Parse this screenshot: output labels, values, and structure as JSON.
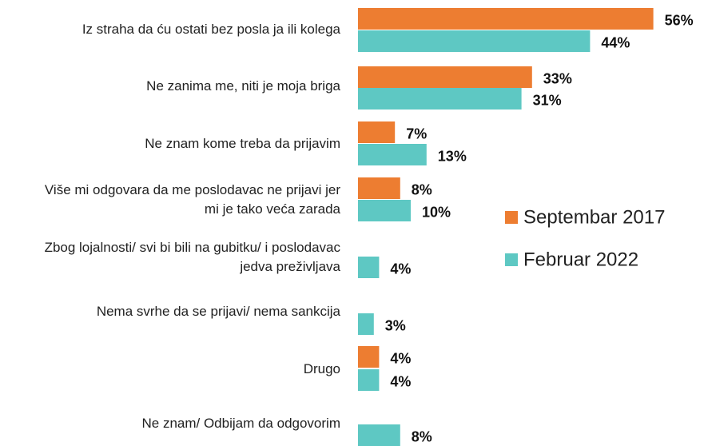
{
  "chart_data": {
    "type": "bar",
    "orientation": "horizontal",
    "categories": [
      "Iz straha da ću ostati bez posla ja ili kolega",
      "Ne zanima me, niti je moja briga",
      "Ne znam kome treba da prijavim",
      "Više mi odgovara da me poslodavac ne prijavi jer mi je tako veća zarada",
      "Zbog lojalnosti/ svi bi bili na gubitku/ i poslodavac jedva preživljava",
      "Nema svrhe da se prijavi/ nema sankcija",
      "Drugo",
      "Ne znam/ Odbijam da odgovorim"
    ],
    "series": [
      {
        "name": "Septembar 2017",
        "color": "#ed7d31",
        "values": [
          56,
          33,
          7,
          8,
          null,
          null,
          4,
          null
        ],
        "value_labels": [
          "56%",
          "33%",
          "7%",
          "8%",
          null,
          null,
          "4%",
          null
        ]
      },
      {
        "name": "Februar 2022",
        "color": "#5ec8c3",
        "values": [
          44,
          31,
          13,
          10,
          4,
          3,
          4,
          8
        ],
        "value_labels": [
          "44%",
          "31%",
          "13%",
          "10%",
          "4%",
          "3%",
          "4%",
          "8%"
        ]
      }
    ],
    "legend": "right"
  }
}
